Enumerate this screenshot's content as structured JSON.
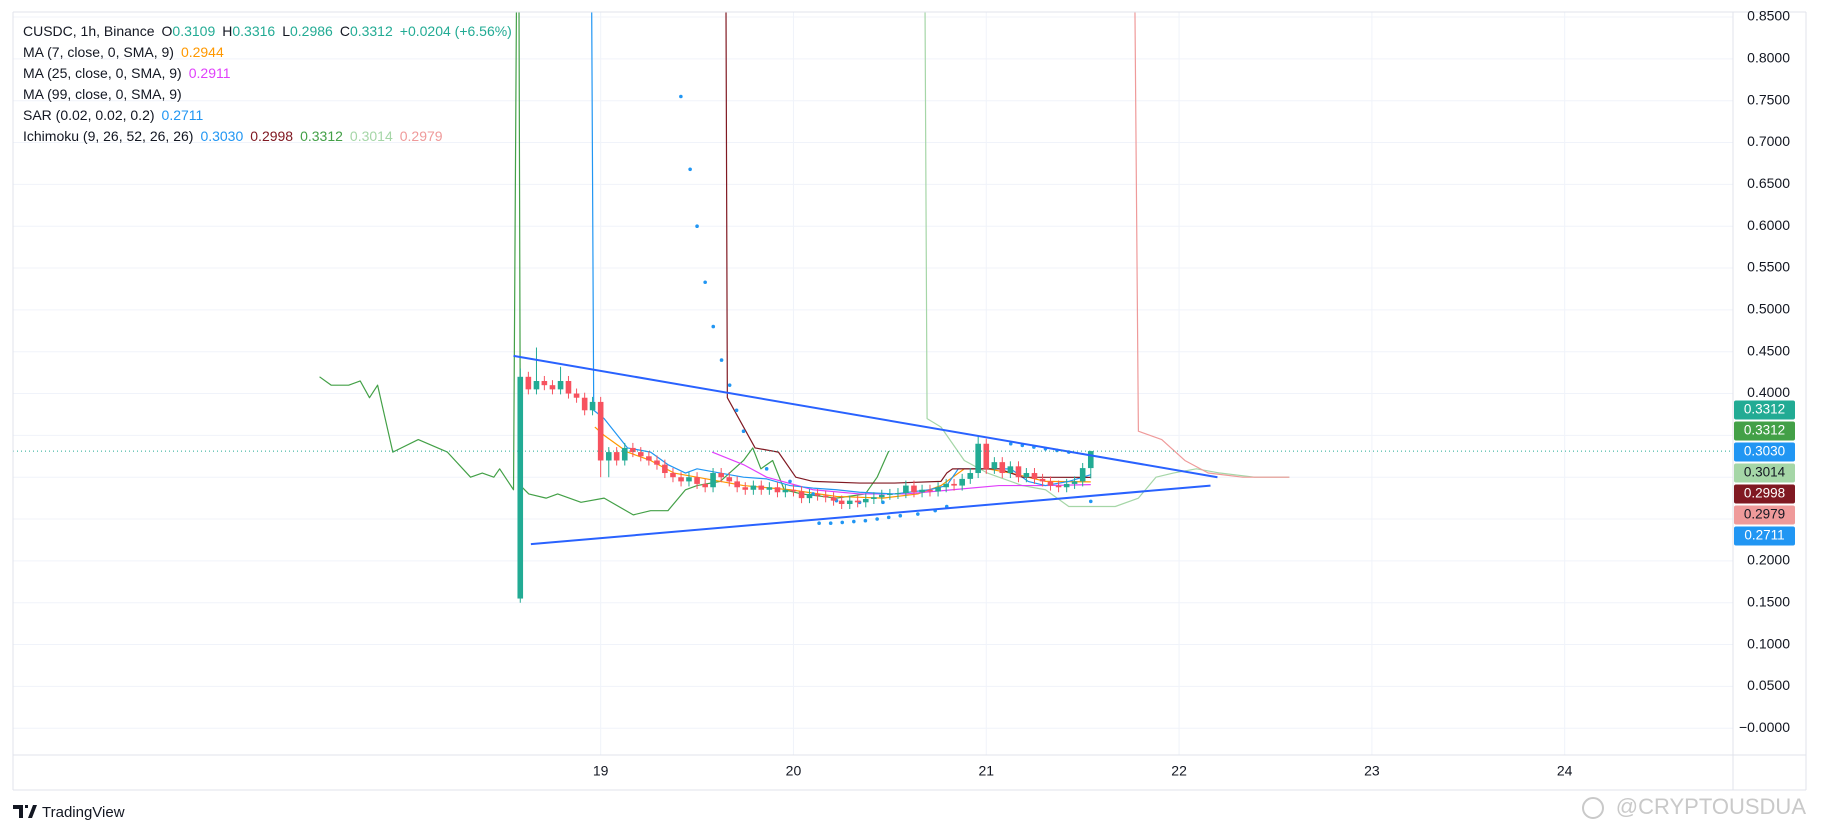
{
  "chart_data": {
    "type": "candlestick",
    "legend": [
      {
        "parts": [
          {
            "text": "CUSDC, 1h, Binance",
            "color": "#131722"
          },
          {
            "text": "O",
            "color": "#131722"
          },
          {
            "text": "0.3109",
            "color": "#22ab94"
          },
          {
            "text": "H",
            "color": "#131722"
          },
          {
            "text": "0.3316",
            "color": "#22ab94"
          },
          {
            "text": "L",
            "color": "#131722"
          },
          {
            "text": "0.2986",
            "color": "#22ab94"
          },
          {
            "text": "C",
            "color": "#131722"
          },
          {
            "text": "0.3312",
            "color": "#22ab94"
          },
          {
            "text": "+0.0204 (+6.56%)",
            "color": "#22ab94"
          }
        ]
      },
      {
        "parts": [
          {
            "text": "MA (7, close, 0, SMA, 9)",
            "color": "#131722"
          },
          {
            "text": "0.2944",
            "color": "#ff9800"
          }
        ]
      },
      {
        "parts": [
          {
            "text": "MA (25, close, 0, SMA, 9)",
            "color": "#131722"
          },
          {
            "text": "0.2911",
            "color": "#e040fb"
          }
        ]
      },
      {
        "parts": [
          {
            "text": "MA (99, close, 0, SMA, 9)",
            "color": "#131722"
          }
        ]
      },
      {
        "parts": [
          {
            "text": "SAR (0.02, 0.02, 0.2)",
            "color": "#131722"
          },
          {
            "text": "0.2711",
            "color": "#2196f3"
          }
        ]
      },
      {
        "parts": [
          {
            "text": "Ichimoku (9, 26, 52, 26, 26)",
            "color": "#131722"
          },
          {
            "text": "0.3030",
            "color": "#2196f3"
          },
          {
            "text": "0.2998",
            "color": "#801922"
          },
          {
            "text": "0.3312",
            "color": "#43a047"
          },
          {
            "text": "0.3014",
            "color": "#a5d6a7"
          },
          {
            "text": "0.2979",
            "color": "#ef9a9a"
          }
        ]
      }
    ],
    "xlim": [
      15.952,
      24.873
    ],
    "xticks": [
      19,
      20,
      21,
      22,
      23,
      24
    ],
    "ylim": [
      -0.032,
      0.856
    ],
    "yticks": [
      {
        "value": 0.85,
        "label": "0.8500"
      },
      {
        "value": 0.8,
        "label": "0.8000"
      },
      {
        "value": 0.75,
        "label": "0.7500"
      },
      {
        "value": 0.7,
        "label": "0.7000"
      },
      {
        "value": 0.65,
        "label": "0.6500"
      },
      {
        "value": 0.6,
        "label": "0.6000"
      },
      {
        "value": 0.55,
        "label": "0.5500"
      },
      {
        "value": 0.5,
        "label": "0.5000"
      },
      {
        "value": 0.45,
        "label": "0.4500"
      },
      {
        "value": 0.4,
        "label": "0.4000"
      },
      {
        "value": 0.35,
        "label": "0.3500"
      },
      {
        "value": 0.3,
        "label": "0.3000"
      },
      {
        "value": 0.25,
        "label": "0.2500"
      },
      {
        "value": 0.2,
        "label": "0.2000"
      },
      {
        "value": 0.15,
        "label": "0.1500"
      },
      {
        "value": 0.1,
        "label": "0.1000"
      },
      {
        "value": 0.05,
        "label": "0.0500"
      },
      {
        "value": 0,
        "label": "−0.0000"
      }
    ],
    "grid": true,
    "up_color": "#22ab94",
    "down_color": "#f7525f",
    "x": [
      18.583,
      18.625,
      18.667,
      18.708,
      18.75,
      18.792,
      18.833,
      18.875,
      18.917,
      18.958,
      19,
      19.042,
      19.083,
      19.125,
      19.167,
      19.208,
      19.25,
      19.292,
      19.333,
      19.375,
      19.417,
      19.458,
      19.5,
      19.542,
      19.583,
      19.625,
      19.667,
      19.708,
      19.75,
      19.792,
      19.833,
      19.875,
      19.917,
      19.958,
      20,
      20.042,
      20.083,
      20.125,
      20.167,
      20.208,
      20.25,
      20.292,
      20.333,
      20.375,
      20.417,
      20.458,
      20.5,
      20.542,
      20.583,
      20.625,
      20.667,
      20.708,
      20.75,
      20.792,
      20.833,
      20.875,
      20.917,
      20.958,
      21,
      21.042,
      21.083,
      21.125,
      21.167,
      21.208,
      21.25,
      21.292,
      21.333,
      21.375,
      21.417,
      21.458,
      21.5,
      21.542
    ],
    "open": [
      0.155,
      0.42,
      0.405,
      0.415,
      0.41,
      0.405,
      0.415,
      0.4,
      0.395,
      0.38,
      0.39,
      0.32,
      0.33,
      0.32,
      0.335,
      0.33,
      0.325,
      0.32,
      0.315,
      0.305,
      0.3,
      0.295,
      0.3,
      0.292,
      0.288,
      0.305,
      0.3,
      0.295,
      0.288,
      0.285,
      0.29,
      0.285,
      0.288,
      0.282,
      0.285,
      0.283,
      0.275,
      0.28,
      0.278,
      0.276,
      0.272,
      0.268,
      0.272,
      0.27,
      0.274,
      0.276,
      0.279,
      0.28,
      0.281,
      0.29,
      0.282,
      0.285,
      0.283,
      0.288,
      0.292,
      0.29,
      0.298,
      0.305,
      0.34,
      0.31,
      0.318,
      0.305,
      0.313,
      0.3,
      0.305,
      0.298,
      0.295,
      0.29,
      0.288,
      0.292,
      0.295,
      0.3109
    ],
    "high": [
      0.43,
      0.426,
      0.455,
      0.421,
      0.416,
      0.432,
      0.421,
      0.406,
      0.401,
      0.396,
      0.396,
      0.336,
      0.336,
      0.341,
      0.341,
      0.336,
      0.331,
      0.326,
      0.321,
      0.311,
      0.306,
      0.306,
      0.306,
      0.298,
      0.311,
      0.311,
      0.306,
      0.301,
      0.294,
      0.296,
      0.296,
      0.294,
      0.294,
      0.291,
      0.291,
      0.289,
      0.286,
      0.286,
      0.284,
      0.282,
      0.278,
      0.278,
      0.278,
      0.28,
      0.282,
      0.285,
      0.286,
      0.287,
      0.296,
      0.296,
      0.291,
      0.291,
      0.294,
      0.298,
      0.298,
      0.304,
      0.311,
      0.35,
      0.346,
      0.324,
      0.324,
      0.319,
      0.319,
      0.311,
      0.311,
      0.304,
      0.301,
      0.296,
      0.298,
      0.301,
      0.317,
      0.3316
    ],
    "low": [
      0.15,
      0.399,
      0.399,
      0.404,
      0.399,
      0.399,
      0.394,
      0.389,
      0.374,
      0.374,
      0.3,
      0.3,
      0.314,
      0.314,
      0.324,
      0.319,
      0.314,
      0.309,
      0.299,
      0.294,
      0.289,
      0.289,
      0.286,
      0.282,
      0.282,
      0.294,
      0.289,
      0.282,
      0.279,
      0.279,
      0.279,
      0.279,
      0.276,
      0.276,
      0.277,
      0.269,
      0.269,
      0.272,
      0.27,
      0.266,
      0.262,
      0.262,
      0.264,
      0.264,
      0.268,
      0.27,
      0.273,
      0.274,
      0.275,
      0.276,
      0.276,
      0.277,
      0.277,
      0.282,
      0.284,
      0.284,
      0.292,
      0.299,
      0.304,
      0.304,
      0.299,
      0.299,
      0.294,
      0.294,
      0.292,
      0.289,
      0.284,
      0.282,
      0.282,
      0.286,
      0.289,
      0.2986
    ],
    "close": [
      0.42,
      0.405,
      0.415,
      0.41,
      0.405,
      0.415,
      0.4,
      0.395,
      0.38,
      0.39,
      0.32,
      0.33,
      0.32,
      0.335,
      0.33,
      0.325,
      0.32,
      0.315,
      0.305,
      0.3,
      0.295,
      0.3,
      0.292,
      0.288,
      0.305,
      0.3,
      0.295,
      0.288,
      0.285,
      0.29,
      0.285,
      0.288,
      0.282,
      0.285,
      0.283,
      0.275,
      0.28,
      0.278,
      0.276,
      0.272,
      0.268,
      0.272,
      0.27,
      0.274,
      0.276,
      0.279,
      0.28,
      0.281,
      0.29,
      0.282,
      0.285,
      0.283,
      0.288,
      0.292,
      0.29,
      0.298,
      0.305,
      0.34,
      0.31,
      0.318,
      0.305,
      0.313,
      0.3,
      0.305,
      0.298,
      0.295,
      0.29,
      0.288,
      0.292,
      0.295,
      0.3109,
      0.3312
    ],
    "overlays": [
      {
        "style": "line",
        "color": "#43a047",
        "x": [
          17.542,
          17.602,
          17.693,
          17.753,
          17.801,
          17.843,
          17.922,
          18.054,
          18.205,
          18.325,
          18.386,
          18.446,
          18.476,
          18.548,
          18.572,
          18.584,
          18.627,
          18.717,
          18.777,
          18.898,
          19.018,
          19.169,
          19.259,
          19.349,
          19.44,
          19.5,
          19.62,
          19.741,
          19.789,
          19.831,
          19.892,
          19.952,
          20.042,
          20.223,
          20.373,
          20.434,
          20.494
        ],
        "values": [
          0.42,
          0.41,
          0.41,
          0.415,
          0.395,
          0.41,
          0.33,
          0.345,
          0.33,
          0.3,
          0.305,
          0.3,
          0.31,
          0.285,
          1.2,
          0.29,
          0.28,
          0.275,
          0.28,
          0.27,
          0.275,
          0.255,
          0.26,
          0.26,
          0.285,
          0.29,
          0.295,
          0.32,
          0.335,
          0.31,
          0.32,
          0.285,
          0.28,
          0.275,
          0.28,
          0.3,
          0.3312
        ]
      },
      {
        "style": "line",
        "color": "#a5d6a7",
        "x": [
          20.675,
          20.693,
          20.765,
          20.886,
          21.006,
          21.187,
          21.307,
          21.428,
          21.548,
          21.669,
          21.789,
          21.88,
          21.97,
          22.09,
          22.211,
          22.392,
          22.512,
          22.572
        ],
        "values": [
          1.2,
          0.37,
          0.36,
          0.32,
          0.305,
          0.29,
          0.285,
          0.265,
          0.265,
          0.265,
          0.275,
          0.3,
          0.305,
          0.31,
          0.305,
          0.3,
          0.3,
          0.3
        ]
      },
      {
        "style": "line",
        "color": "#ef9a9a",
        "x": [
          21.759,
          21.789,
          21.91,
          22.03,
          22.151,
          22.331,
          22.572
        ],
        "values": [
          1.2,
          0.355,
          0.345,
          0.32,
          0.305,
          0.3,
          0.3
        ]
      },
      {
        "style": "line",
        "color": "#ff9800",
        "x": [
          18.97,
          19.018,
          19.139,
          19.259,
          19.38,
          19.5,
          19.741,
          19.982,
          20.223,
          20.464,
          20.645,
          20.765,
          20.886,
          21.006,
          21.127,
          21.307,
          21.542
        ],
        "values": [
          0.36,
          0.35,
          0.33,
          0.32,
          0.305,
          0.3,
          0.29,
          0.285,
          0.277,
          0.275,
          0.28,
          0.29,
          0.31,
          0.31,
          0.305,
          0.295,
          0.2944
        ]
      },
      {
        "style": "line",
        "color": "#e040fb",
        "x": [
          19.578,
          19.741,
          19.861,
          20.102,
          20.343,
          20.584,
          20.825,
          21.066,
          21.307,
          21.542
        ],
        "values": [
          0.33,
          0.315,
          0.3,
          0.285,
          0.28,
          0.28,
          0.285,
          0.29,
          0.29,
          0.2911
        ]
      },
      {
        "style": "line",
        "color": "#2196f3",
        "x": [
          18.946,
          18.964,
          19.018,
          19.139,
          19.259,
          19.349,
          19.44,
          19.5,
          19.62,
          19.741,
          19.861,
          19.982,
          20.102,
          20.223,
          20.343,
          20.524,
          20.705,
          20.795,
          20.855,
          20.976,
          21.127,
          21.217,
          21.307,
          21.428,
          21.542
        ],
        "values": [
          1.2,
          0.38,
          0.37,
          0.335,
          0.33,
          0.315,
          0.305,
          0.31,
          0.305,
          0.3,
          0.298,
          0.29,
          0.287,
          0.285,
          0.282,
          0.28,
          0.285,
          0.29,
          0.31,
          0.31,
          0.31,
          0.295,
          0.29,
          0.295,
          0.303
        ]
      },
      {
        "style": "line",
        "color": "#801922",
        "x": [
          19.645,
          19.657,
          19.801,
          19.922,
          20.012,
          20.102,
          20.343,
          20.524,
          20.765,
          20.795,
          20.825,
          21.066,
          21.187,
          21.542
        ],
        "values": [
          1.2,
          0.395,
          0.335,
          0.33,
          0.3,
          0.295,
          0.293,
          0.293,
          0.295,
          0.305,
          0.31,
          0.31,
          0.3,
          0.2998
        ]
      },
      {
        "style": "dots",
        "color": "#2196f3",
        "x": [
          19.416,
          19.464,
          19.5,
          19.542,
          19.584,
          19.627,
          19.669,
          19.705,
          19.741,
          19.861,
          19.982,
          20.102,
          20.133,
          20.193,
          20.223,
          20.253,
          20.313,
          20.343,
          20.373,
          20.434,
          20.464,
          20.494,
          20.554,
          20.645,
          20.735,
          20.795,
          21.127,
          21.187,
          21.247,
          21.307,
          21.367,
          21.428,
          21.542
        ],
        "values": [
          0.755,
          0.668,
          0.6,
          0.533,
          0.48,
          0.44,
          0.41,
          0.38,
          0.355,
          0.31,
          0.295,
          0.28,
          0.245,
          0.245,
          0.272,
          0.246,
          0.247,
          0.27,
          0.248,
          0.25,
          0.27,
          0.252,
          0.254,
          0.256,
          0.26,
          0.265,
          0.34,
          0.338,
          0.336,
          0.334,
          0.332,
          0.33,
          0.2711
        ]
      },
      {
        "style": "trendline",
        "color": "#2962ff",
        "x": [
          18.548,
          22.199
        ],
        "values": [
          0.445,
          0.3
        ]
      },
      {
        "style": "trendline",
        "color": "#2962ff",
        "x": [
          18.638,
          22.163
        ],
        "values": [
          0.22,
          0.29
        ]
      }
    ],
    "price_labels": [
      {
        "value": 0.3312,
        "label": "0.3312",
        "color": "#22ab94",
        "text_color": "#ffffff"
      },
      {
        "value": 0.3312,
        "label": "0.3312",
        "color": "#43a047",
        "text_color": "#ffffff"
      },
      {
        "value": 0.303,
        "label": "0.3030",
        "color": "#2196f3",
        "text_color": "#ffffff"
      },
      {
        "value": 0.3014,
        "label": "0.3014",
        "color": "#a5d6a7",
        "text_color": "#131722"
      },
      {
        "value": 0.2998,
        "label": "0.2998",
        "color": "#801922",
        "text_color": "#ffffff"
      },
      {
        "value": 0.2979,
        "label": "0.2979",
        "color": "#ef9a9a",
        "text_color": "#131722"
      },
      {
        "value": 0.2711,
        "label": "0.2711",
        "color": "#2196f3",
        "text_color": "#ffffff"
      }
    ],
    "logo_text": "TradingView",
    "watermark": "@CRYPTOUSDUA"
  }
}
